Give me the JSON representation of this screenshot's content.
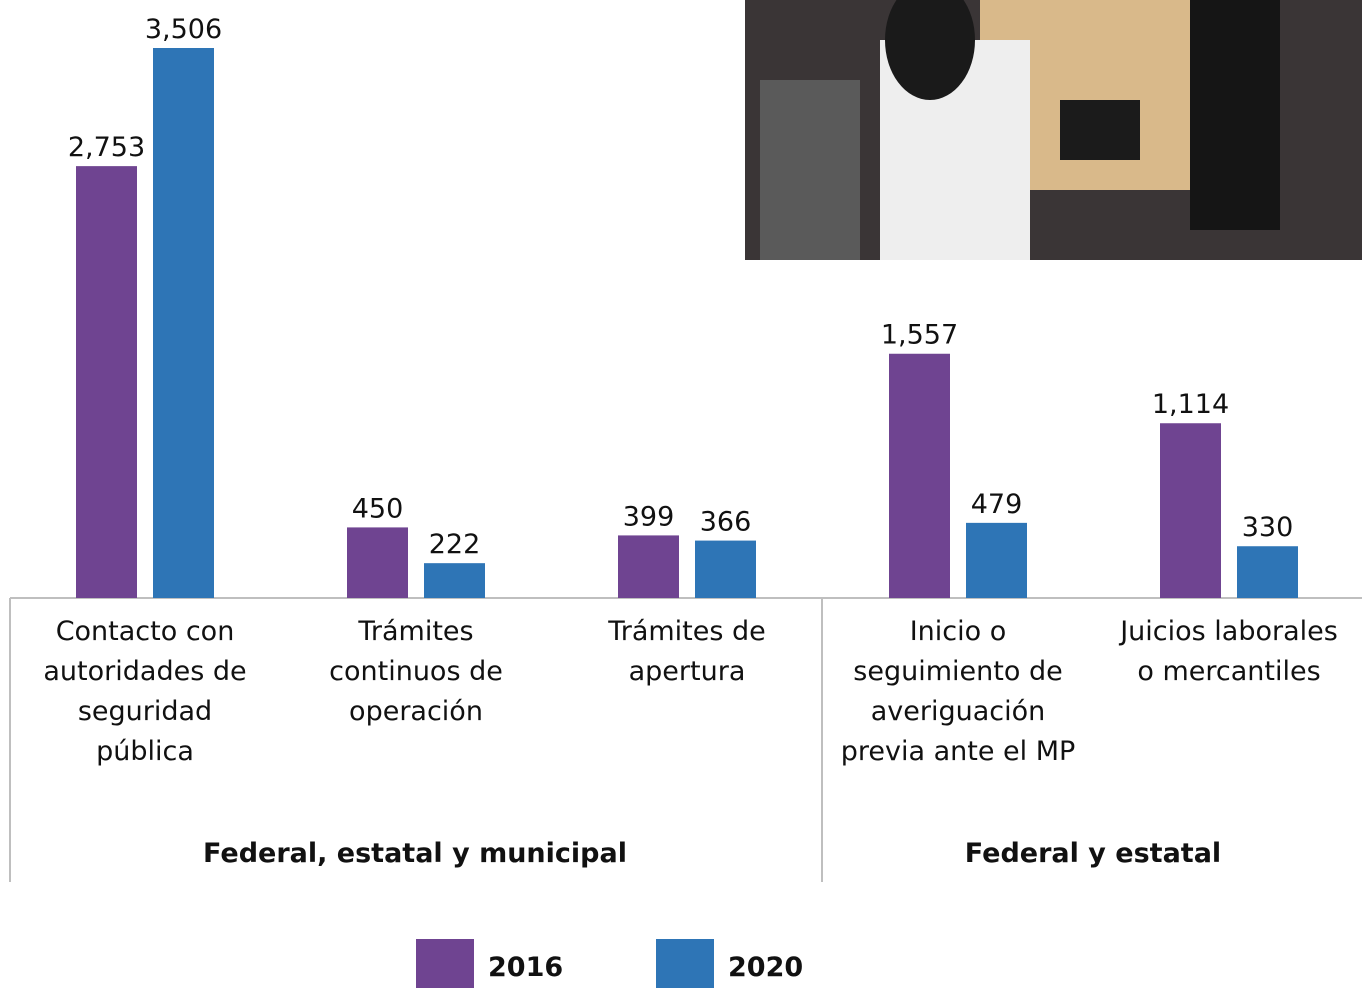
{
  "chart_data": {
    "type": "bar",
    "categories": [
      "Contacto con autoridades de seguridad pública",
      "Trámites continuos de operación",
      "Trámites de apertura",
      "Inicio o seguimiento de averiguación previa ante el MP",
      "Juicios laborales o mercantiles"
    ],
    "groups": [
      "Federal, estatal y municipal",
      "Federal y estatal"
    ],
    "series": [
      {
        "name": "2016",
        "color": "#6f4491",
        "values": [
          2753,
          450,
          399,
          1557,
          1114
        ],
        "value_labels": [
          "2,753",
          "450",
          "399",
          "1,557",
          "1,114"
        ]
      },
      {
        "name": "2020",
        "color": "#2e75b6",
        "values": [
          3506,
          222,
          366,
          479,
          330
        ],
        "value_labels": [
          "3,506",
          "222",
          "366",
          "479",
          "330"
        ]
      }
    ]
  }
}
